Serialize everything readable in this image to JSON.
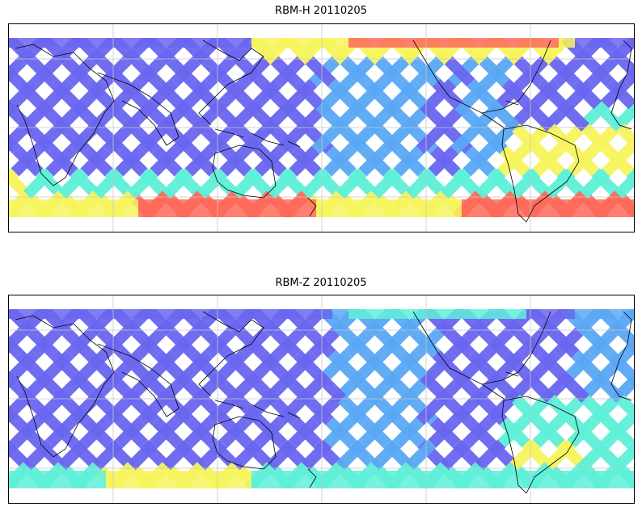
{
  "panels": [
    {
      "title": "RBM-H 20110205",
      "map_type": "global swath map, equirectangular",
      "colors": {
        "low": "#6a66f0",
        "mid_low": "#5aa8f5",
        "mid": "#5ff0d8",
        "mid_high": "#f7f55e",
        "high": "#ff6a5a"
      }
    },
    {
      "title": "RBM-Z 20110205",
      "map_type": "global swath map, equirectangular",
      "colors": {
        "low": "#6a66f0",
        "mid_low": "#5aa8f5",
        "mid": "#5ff0d8",
        "mid_high": "#f7f55e",
        "high": "#ff6a5a"
      }
    }
  ],
  "map_style": {
    "gridlines": true,
    "gridline_color": "#c8c8c8",
    "coastline_color": "#000000",
    "background": "#ffffff"
  }
}
